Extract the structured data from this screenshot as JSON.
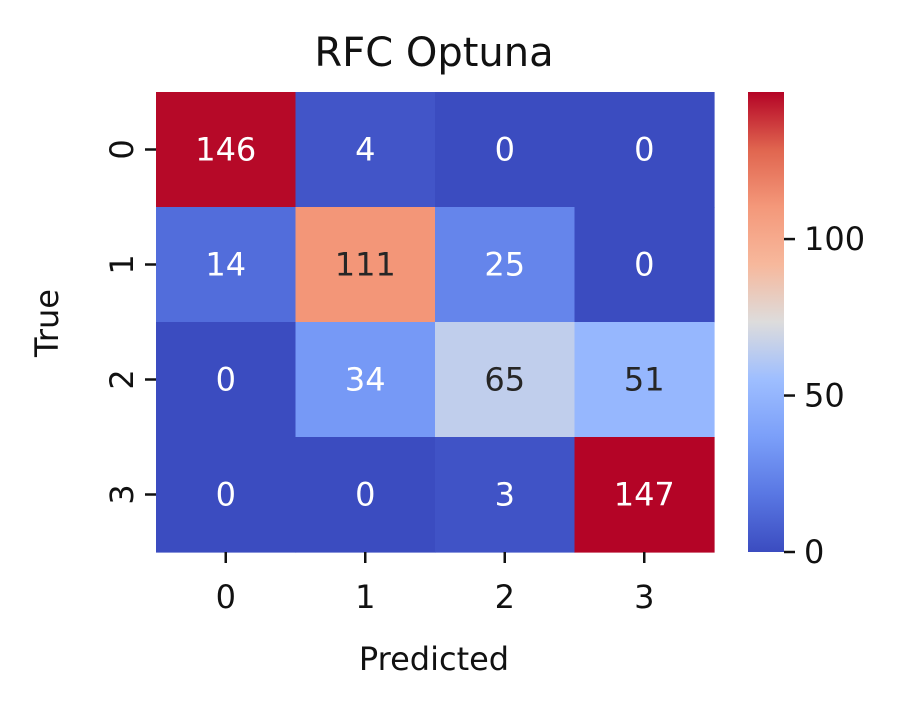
{
  "chart_data": {
    "type": "heatmap",
    "title": "RFC Optuna",
    "xlabel": "Predicted",
    "ylabel": "True",
    "x_categories": [
      "0",
      "1",
      "2",
      "3"
    ],
    "y_categories": [
      "0",
      "1",
      "2",
      "3"
    ],
    "values": [
      [
        146,
        4,
        0,
        0
      ],
      [
        14,
        111,
        25,
        0
      ],
      [
        0,
        34,
        65,
        51
      ],
      [
        0,
        0,
        3,
        147
      ]
    ],
    "colormap": "coolwarm",
    "vmin": 0,
    "vmax": 147,
    "colorbar_ticks": [
      0,
      50,
      100
    ],
    "colorbar_tick_labels": [
      "0",
      "50",
      "100"
    ]
  }
}
